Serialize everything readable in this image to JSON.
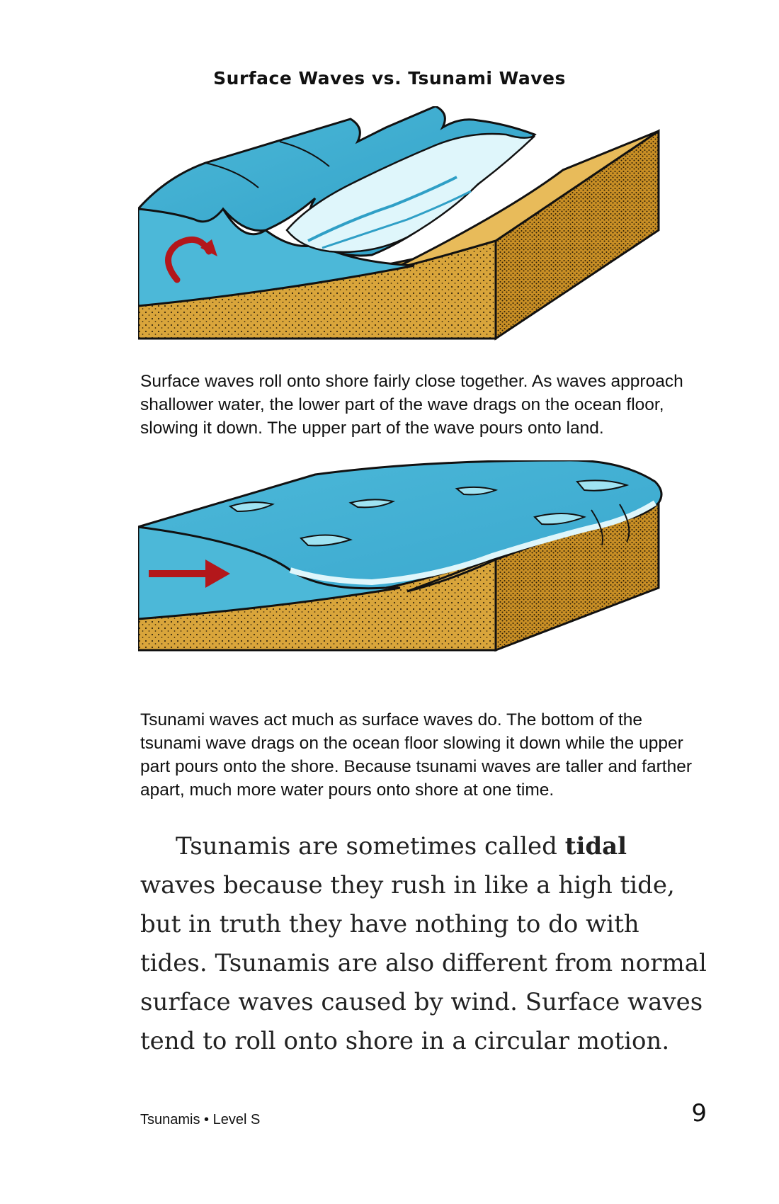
{
  "page": {
    "title": "Surface Waves vs. Tsunami Waves",
    "caption_surface": "Surface waves roll onto shore fairly close together. As waves approach shallower water, the lower part of the wave drags on the ocean floor, slowing it down. The upper part of the wave pours onto land.",
    "caption_tsunami": "Tsunami waves act much as surface waves do. The bottom of the tsunami wave drags on the ocean floor slowing it down while the upper part pours onto the shore. Because tsunami waves are taller and farther apart, much more water pours onto shore at one time.",
    "body": {
      "intro": "Tsunamis are sometimes called ",
      "bold_term": "tidal",
      "rest": " waves because they rush in like a high tide, but in truth they have nothing to do with tides. Tsunamis are also different from normal surface waves caused by wind. Surface waves tend to roll onto shore in a circular motion."
    },
    "footer": {
      "book_label": "Tsunamis • Level S",
      "page_number": "9"
    }
  },
  "colors": {
    "water": "#4cb8d8",
    "water_light": "#9fe3f2",
    "sand": "#d9a53b",
    "sand_dark": "#c98f25",
    "arrow": "#b3171b"
  }
}
